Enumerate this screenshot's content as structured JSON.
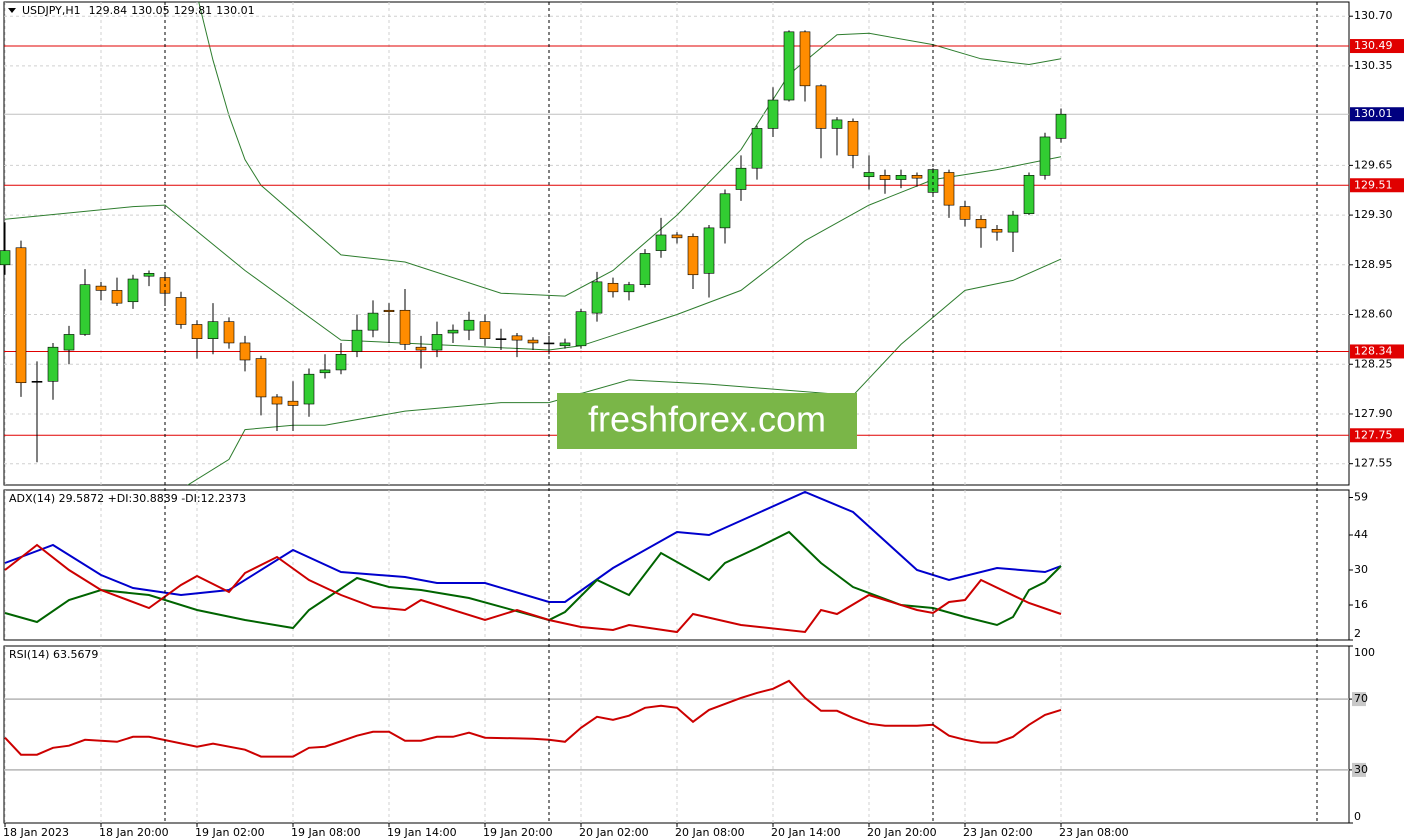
{
  "chart_data": [
    {
      "type": "candlestick",
      "title": "USDJPY,H1",
      "xlim": [
        0,
        84
      ],
      "xticks": [
        {
          "value": 0,
          "label": "18 Jan 2023"
        },
        {
          "value": 6,
          "label": "18 Jan 20:00"
        },
        {
          "value": 12,
          "label": "19 Jan 02:00"
        },
        {
          "value": 18,
          "label": "19 Jan 08:00"
        },
        {
          "value": 24,
          "label": "19 Jan 14:00"
        },
        {
          "value": 30,
          "label": "19 Jan 20:00"
        },
        {
          "value": 36,
          "label": "20 Jan 02:00"
        },
        {
          "value": 42,
          "label": "20 Jan 08:00"
        },
        {
          "value": 48,
          "label": "20 Jan 14:00"
        },
        {
          "value": 54,
          "label": "20 Jan 20:00"
        },
        {
          "value": 60,
          "label": "23 Jan 02:00"
        },
        {
          "value": 66,
          "label": "23 Jan 08:00"
        }
      ],
      "ylim": [
        127.4,
        130.8
      ],
      "yticks": [
        {
          "value": 130.7,
          "label": "130.70"
        },
        130.35,
        129.65,
        {
          "value": 129.3,
          "label": "129.30"
        },
        128.95,
        {
          "value": 128.6,
          "label": "128.60"
        },
        128.25,
        {
          "value": 127.9,
          "label": "127.90"
        },
        127.55
      ],
      "grid": true,
      "up_color": "#32cd32",
      "down_color": "#ff8c00",
      "open": [
        128.95,
        129.07,
        128.13,
        128.13,
        128.35,
        128.46,
        128.8,
        128.77,
        128.69,
        128.87,
        128.86,
        128.72,
        128.53,
        128.43,
        128.55,
        128.4,
        128.29,
        128.02,
        127.99,
        127.97,
        128.19,
        128.21,
        128.34,
        128.49,
        128.63,
        128.63,
        128.37,
        128.35,
        128.47,
        128.49,
        128.55,
        128.43,
        128.45,
        128.42,
        128.4,
        128.38,
        128.38,
        128.61,
        128.82,
        128.76,
        128.81,
        129.05,
        129.16,
        129.15,
        128.89,
        129.21,
        129.48,
        129.63,
        129.91,
        130.11,
        130.59,
        130.21,
        129.91,
        129.96,
        129.57,
        129.58,
        129.55,
        129.58,
        129.46,
        129.6,
        129.36,
        129.27,
        129.2,
        129.18,
        129.31,
        129.58,
        129.84
      ],
      "high": [
        129.25,
        129.12,
        128.27,
        128.4,
        128.52,
        128.92,
        128.83,
        128.86,
        128.88,
        128.91,
        128.88,
        128.76,
        128.56,
        128.68,
        128.58,
        128.45,
        128.31,
        128.04,
        128.13,
        128.22,
        128.32,
        128.4,
        128.6,
        128.7,
        128.68,
        128.78,
        128.45,
        128.55,
        128.53,
        128.62,
        128.6,
        128.5,
        128.47,
        128.44,
        128.45,
        128.43,
        128.64,
        128.9,
        128.86,
        128.83,
        129.06,
        129.28,
        129.18,
        129.17,
        129.23,
        129.48,
        129.72,
        129.93,
        130.2,
        130.6,
        130.6,
        130.22,
        129.99,
        129.98,
        129.72,
        129.62,
        129.62,
        129.6,
        129.63,
        129.62,
        129.4,
        129.3,
        129.23,
        129.33,
        129.6,
        129.88,
        130.05
      ],
      "low": [
        128.88,
        128.02,
        127.56,
        128.0,
        128.25,
        128.45,
        128.7,
        128.66,
        128.64,
        128.8,
        128.66,
        128.5,
        128.29,
        128.32,
        128.36,
        128.2,
        127.89,
        127.78,
        127.78,
        127.88,
        128.15,
        128.18,
        128.3,
        128.44,
        128.4,
        128.35,
        128.22,
        128.3,
        128.4,
        128.42,
        128.38,
        128.35,
        128.3,
        128.35,
        128.32,
        128.36,
        128.36,
        128.55,
        128.72,
        128.7,
        128.79,
        129.0,
        129.1,
        128.78,
        128.72,
        129.1,
        129.4,
        129.55,
        129.85,
        130.1,
        130.1,
        129.7,
        129.72,
        129.63,
        129.48,
        129.45,
        129.49,
        129.5,
        129.44,
        129.28,
        129.22,
        129.07,
        129.12,
        129.04,
        129.3,
        129.55,
        129.81
      ],
      "close": [
        129.05,
        128.12,
        128.13,
        128.37,
        128.46,
        128.81,
        128.77,
        128.68,
        128.85,
        128.89,
        128.75,
        128.53,
        128.43,
        128.55,
        128.4,
        128.28,
        128.02,
        127.97,
        127.96,
        128.18,
        128.21,
        128.32,
        128.49,
        128.61,
        128.62,
        128.39,
        128.35,
        128.46,
        128.49,
        128.56,
        128.43,
        128.43,
        128.42,
        128.4,
        128.4,
        128.4,
        128.62,
        128.83,
        128.76,
        128.81,
        129.03,
        129.16,
        129.14,
        128.88,
        129.21,
        129.45,
        129.63,
        129.91,
        130.11,
        130.59,
        130.21,
        129.91,
        129.97,
        129.72,
        129.6,
        129.55,
        129.58,
        129.56,
        129.62,
        129.37,
        129.27,
        129.21,
        129.18,
        129.3,
        129.58,
        129.85,
        130.01
      ],
      "series": [
        {
          "color": "#2e7d2e",
          "x": [
            12,
            13,
            14,
            15,
            16,
            21,
            25,
            31,
            35,
            38,
            42,
            46,
            49,
            52,
            54,
            58,
            61,
            64,
            66
          ],
          "values": [
            130.85,
            130.39,
            130.0,
            129.69,
            129.51,
            129.02,
            128.97,
            128.75,
            128.73,
            128.91,
            129.3,
            129.76,
            130.29,
            130.57,
            130.58,
            130.5,
            130.4,
            130.36,
            130.4
          ]
        },
        {
          "color": "#2e7d2e",
          "x": [
            0,
            8,
            10,
            15,
            21,
            34,
            36,
            42,
            46,
            50,
            54,
            58,
            62,
            66
          ],
          "values": [
            129.27,
            129.36,
            129.37,
            128.91,
            128.42,
            128.35,
            128.38,
            128.6,
            128.77,
            129.12,
            129.37,
            129.55,
            129.62,
            129.71
          ]
        },
        {
          "color": "#2e7d2e",
          "x": [
            10,
            14,
            15,
            18,
            20,
            25,
            31,
            34,
            39,
            44,
            53,
            56,
            60,
            63,
            66
          ],
          "values": [
            127.3,
            127.58,
            127.79,
            127.82,
            127.82,
            127.92,
            127.98,
            127.98,
            128.14,
            128.11,
            128.03,
            128.39,
            128.77,
            128.84,
            128.99
          ]
        }
      ],
      "levels": [
        130.49,
        129.51,
        128.34,
        127.75
      ],
      "level_color": "#e00000",
      "price": 130.01,
      "price_color": "#000080",
      "separators": [
        10,
        34,
        58,
        82
      ],
      "watermark": "freshforex.com"
    },
    {
      "type": "line",
      "title": "ADX(14) 29.5872 +DI:30.8839 -DI:12.2373",
      "ylim": [
        2,
        62
      ],
      "yticks": [
        59,
        44,
        30,
        16,
        2
      ],
      "series": [
        {
          "color": "#0000cd",
          "x": [
            0,
            3,
            6,
            8,
            11,
            14,
            18,
            21,
            25,
            27,
            30,
            34,
            35,
            38,
            42,
            44,
            50,
            53,
            57,
            59,
            62,
            65,
            66
          ],
          "values": [
            32.8,
            40,
            28,
            22.8,
            20,
            22,
            38,
            29.2,
            27.2,
            24.8,
            24.8,
            17.2,
            17.2,
            30.8,
            45.2,
            44,
            61.2,
            53.2,
            30,
            26,
            30.8,
            29.2,
            31.6
          ]
        },
        {
          "color": "#006400",
          "x": [
            0,
            2,
            4,
            6,
            9,
            12,
            15,
            18,
            19,
            22,
            24,
            26,
            29,
            34,
            35,
            37,
            39,
            41,
            44,
            45,
            47,
            49,
            51,
            53,
            56,
            58,
            60,
            62,
            63,
            64,
            65,
            66
          ],
          "values": [
            12.8,
            9.2,
            18,
            22,
            20,
            14,
            10,
            6.8,
            14,
            26.8,
            23.2,
            22,
            18.8,
            10,
            13.2,
            26,
            20,
            36.8,
            26,
            32.8,
            38.8,
            45.2,
            32.8,
            23.2,
            16,
            14.8,
            11.2,
            8,
            11.2,
            22,
            25.2,
            31.6
          ]
        },
        {
          "color": "#cc0000",
          "x": [
            0,
            2,
            4,
            6,
            9,
            11,
            12,
            14,
            15,
            17,
            19,
            21,
            23,
            25,
            26,
            30,
            32,
            34,
            36,
            38,
            39,
            42,
            43,
            46,
            50,
            51,
            52,
            54,
            57,
            58,
            59,
            60,
            61,
            64,
            66
          ],
          "values": [
            30,
            40,
            30,
            22,
            14.8,
            24,
            27.6,
            21.2,
            28.8,
            35.2,
            26,
            20,
            15.2,
            14,
            18,
            10,
            14,
            10,
            7.2,
            6,
            8,
            5.2,
            12.4,
            8,
            5.2,
            14,
            12.4,
            20,
            14,
            12.8,
            17.2,
            18,
            26,
            16.8,
            12.4
          ]
        }
      ]
    },
    {
      "type": "line",
      "title": "RSI(14) 63.5679",
      "ylim": [
        0,
        100
      ],
      "yticks": [
        100,
        70,
        30,
        0
      ],
      "levels": [
        70,
        30
      ],
      "level_color": "#b4b4b4",
      "series": [
        {
          "color": "#cc0000",
          "x": [
            0,
            1,
            2,
            3,
            4,
            5,
            7,
            8,
            9,
            12,
            13,
            15,
            16,
            18,
            19,
            20,
            22,
            23,
            24,
            25,
            26,
            27,
            28,
            29,
            30,
            33,
            34,
            35,
            36,
            37,
            38,
            39,
            40,
            41,
            42,
            43,
            44,
            46,
            47,
            48,
            49,
            50,
            51,
            52,
            53,
            54,
            55,
            57,
            58,
            59,
            60,
            61,
            62,
            63,
            64,
            65,
            66
          ],
          "values": [
            48.2,
            38.6,
            38.6,
            42.5,
            43.7,
            47,
            45.9,
            48.7,
            48.7,
            43.1,
            44.8,
            41.4,
            37.5,
            37.5,
            42.5,
            43.1,
            49.3,
            51.5,
            51.5,
            46.5,
            46.5,
            48.7,
            48.7,
            51,
            48.2,
            47.6,
            47,
            45.9,
            53.8,
            60,
            58.3,
            60.6,
            65.1,
            66.2,
            65.1,
            57.2,
            63.9,
            70.7,
            73.5,
            75.8,
            80.3,
            70.7,
            63.4,
            63.4,
            59.4,
            56.1,
            54.9,
            54.9,
            55.5,
            49.3,
            47,
            45.4,
            45.4,
            48.7,
            55.5,
            61.1,
            63.9
          ]
        }
      ]
    }
  ]
}
